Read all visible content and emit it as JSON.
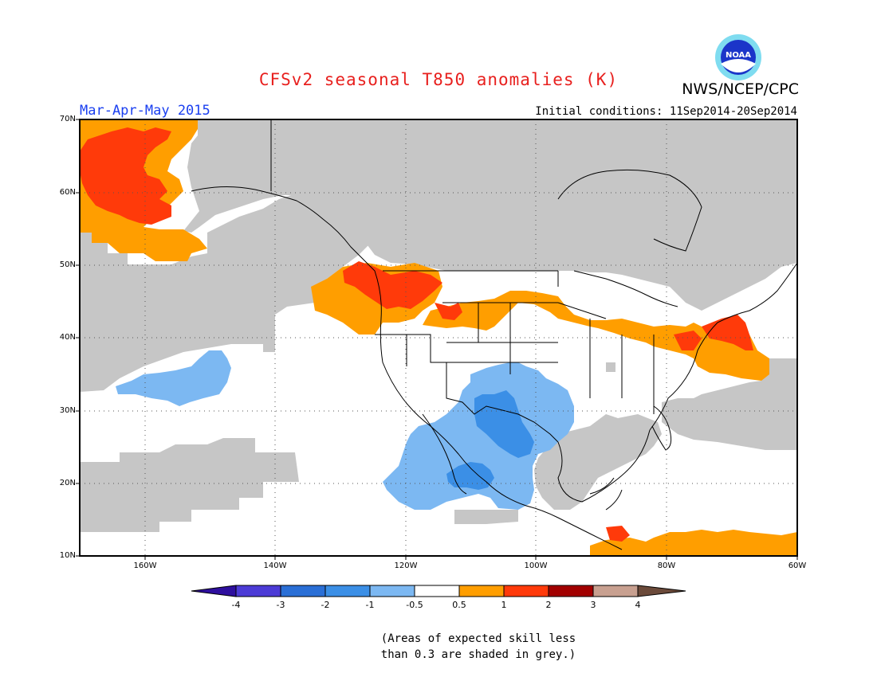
{
  "header": {
    "title": "CFSv2 seasonal T850 anomalies (K)",
    "agency": "NWS/NCEP/CPC",
    "logo_text": "NOAA",
    "period": "Mar-Apr-May 2015",
    "initial_conditions": "Initial conditions: 11Sep2014-20Sep2014"
  },
  "map": {
    "lat_labels": [
      "70N",
      "60N",
      "50N",
      "40N",
      "30N",
      "20N",
      "10N"
    ],
    "lon_labels": [
      "160W",
      "140W",
      "120W",
      "100W",
      "80W",
      "60W"
    ],
    "extent": {
      "lon": [
        -170,
        -60
      ],
      "lat": [
        10,
        70
      ]
    }
  },
  "colorbar": {
    "labels": [
      "-4",
      "-3",
      "-2",
      "-1",
      "-0.5",
      "0.5",
      "1",
      "2",
      "3",
      "4"
    ],
    "colors": [
      "#2e0f9e",
      "#4c3bd6",
      "#2a6fd6",
      "#3b8fe6",
      "#7cb8f2",
      "#ffffff",
      "#ff9e00",
      "#ff3a0a",
      "#a20000",
      "#c8a090",
      "#6b4a3a"
    ],
    "grey_color": "#c6c6c6"
  },
  "note": {
    "line1": "(Areas of expected skill less",
    "line2": "than 0.3 are shaded in grey.)"
  }
}
